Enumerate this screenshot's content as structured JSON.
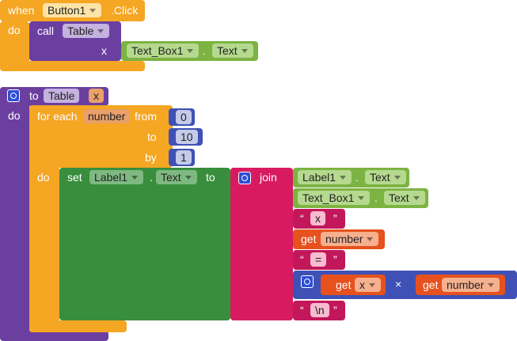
{
  "event_block": {
    "when": "when",
    "component": "Button1",
    "event": ".Click",
    "do": "do",
    "call_block": {
      "call": "call",
      "procedure": "Table",
      "arg_label": "x",
      "getter": {
        "component": "Text_Box1",
        "dot": ".",
        "property": "Text"
      }
    }
  },
  "procedure_block": {
    "to": "to",
    "name": "Table",
    "param": "x",
    "do": "do",
    "for_each": {
      "for_each": "for each",
      "variable": "number",
      "from": "from",
      "from_value": 0,
      "to": "to",
      "to_value": 10,
      "by": "by",
      "by_value": 1,
      "do": "do",
      "set": {
        "set": "set",
        "component": "Label1",
        "dot": ".",
        "property": "Text",
        "to": "to",
        "join": {
          "join": "join",
          "items": [
            {
              "component": "Label1",
              "dot": ".",
              "property": "Text"
            },
            {
              "component": "Text_Box1",
              "dot": ".",
              "property": "Text"
            },
            {
              "open_quote": "“",
              "text": "x",
              "close_quote": "”"
            },
            {
              "get": "get",
              "variable": "number"
            },
            {
              "open_quote": "“",
              "text": "=",
              "close_quote": "”"
            },
            {
              "left": {
                "get": "get",
                "variable": "x"
              },
              "operator": "×",
              "right": {
                "get": "get",
                "variable": "number"
              }
            },
            {
              "open_quote": "“",
              "text": "\\n",
              "close_quote": "”"
            }
          ]
        }
      }
    }
  }
}
